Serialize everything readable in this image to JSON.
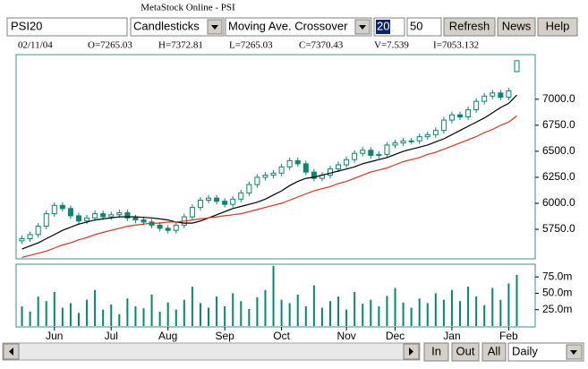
{
  "ui": {
    "window_title": "MetaStock Online - PSI",
    "symbol": "PSI20",
    "chart_style": "Candlesticks",
    "indicator": "Moving Ave. Crossover",
    "period_1": "20",
    "period_2": "50",
    "buttons": [
      "Refresh",
      "News",
      "Help"
    ],
    "nav_buttons": [
      "In",
      "Out",
      "All"
    ],
    "interval": "Daily",
    "info": [
      "02/11/04",
      "O=7265.03",
      "H=7372.81",
      "L=7265.03",
      "C=7370.43",
      "V=7.539",
      "I=7053.132"
    ]
  },
  "chart_data": {
    "type": "candlestick",
    "months": [
      "Jun",
      "Jul",
      "Aug",
      "Sep",
      "Oct",
      "Nov",
      "Dec",
      "Jan",
      "Feb"
    ],
    "month_index": [
      4,
      11,
      18,
      25,
      32,
      40,
      46,
      53,
      60
    ],
    "open": [
      5640,
      5660,
      5700,
      5780,
      5900,
      5980,
      5950,
      5880,
      5830,
      5860,
      5900,
      5870,
      5890,
      5910,
      5860,
      5840,
      5820,
      5790,
      5760,
      5740,
      5790,
      5870,
      5960,
      6030,
      6050,
      6020,
      5990,
      6040,
      6100,
      6180,
      6250,
      6270,
      6290,
      6350,
      6410,
      6380,
      6300,
      6240,
      6270,
      6330,
      6370,
      6420,
      6480,
      6510,
      6460,
      6470,
      6560,
      6580,
      6600,
      6600,
      6640,
      6660,
      6700,
      6800,
      6850,
      6830,
      6900,
      6980,
      7030,
      7060,
      7020,
      7265.03
    ],
    "high": [
      5690,
      5730,
      5810,
      5930,
      6010,
      6010,
      5980,
      5910,
      5890,
      5930,
      5930,
      5920,
      5940,
      5940,
      5890,
      5870,
      5850,
      5820,
      5790,
      5820,
      5900,
      5990,
      6060,
      6080,
      6080,
      6050,
      6070,
      6130,
      6210,
      6280,
      6300,
      6320,
      6380,
      6440,
      6440,
      6410,
      6330,
      6300,
      6360,
      6400,
      6450,
      6510,
      6540,
      6540,
      6500,
      6590,
      6610,
      6630,
      6630,
      6670,
      6690,
      6730,
      6830,
      6880,
      6880,
      6930,
      7010,
      7060,
      7090,
      7090,
      7110,
      7372.81
    ],
    "low": [
      5610,
      5630,
      5670,
      5750,
      5870,
      5920,
      5850,
      5800,
      5800,
      5830,
      5840,
      5840,
      5860,
      5830,
      5810,
      5790,
      5760,
      5730,
      5710,
      5710,
      5760,
      5840,
      5930,
      6000,
      5990,
      5960,
      5960,
      6010,
      6070,
      6150,
      6220,
      6240,
      6260,
      6320,
      6350,
      6270,
      6210,
      6210,
      6240,
      6300,
      6340,
      6390,
      6450,
      6430,
      6430,
      6440,
      6530,
      6550,
      6570,
      6570,
      6610,
      6630,
      6670,
      6770,
      6800,
      6800,
      6870,
      6950,
      7000,
      6990,
      6990,
      7265.03
    ],
    "close": [
      5660,
      5700,
      5780,
      5900,
      5980,
      5950,
      5880,
      5830,
      5860,
      5900,
      5870,
      5890,
      5910,
      5860,
      5840,
      5820,
      5790,
      5760,
      5740,
      5790,
      5870,
      5960,
      6030,
      6050,
      6020,
      5990,
      6040,
      6100,
      6180,
      6250,
      6270,
      6290,
      6350,
      6410,
      6380,
      6300,
      6240,
      6270,
      6330,
      6370,
      6420,
      6480,
      6510,
      6460,
      6470,
      6560,
      6580,
      6600,
      6600,
      6640,
      6660,
      6700,
      6800,
      6850,
      6830,
      6900,
      6980,
      7030,
      7060,
      7020,
      7080,
      7370.43
    ],
    "color": "#008a6e",
    "series": [
      {
        "color": "#000000",
        "values": [
          5560,
          5590,
          5620,
          5660,
          5700,
          5740,
          5770,
          5800,
          5820,
          5840,
          5850,
          5860,
          5870,
          5870,
          5870,
          5865,
          5860,
          5850,
          5840,
          5820,
          5810,
          5810,
          5830,
          5860,
          5890,
          5920,
          5950,
          5970,
          5990,
          6010,
          6040,
          6080,
          6120,
          6170,
          6210,
          6240,
          6250,
          6270,
          6290,
          6310,
          6330,
          6350,
          6380,
          6400,
          6420,
          6440,
          6470,
          6500,
          6520,
          6540,
          6560,
          6590,
          6620,
          6660,
          6700,
          6740,
          6780,
          6820,
          6870,
          6920,
          6960,
          7040
        ]
      },
      {
        "color": "#e0301e",
        "values": [
          5480,
          5500,
          5520,
          5540,
          5570,
          5600,
          5620,
          5650,
          5670,
          5700,
          5720,
          5740,
          5760,
          5780,
          5790,
          5800,
          5810,
          5810,
          5820,
          5820,
          5830,
          5840,
          5850,
          5860,
          5870,
          5880,
          5890,
          5900,
          5920,
          5940,
          5960,
          5980,
          6000,
          6030,
          6060,
          6090,
          6120,
          6140,
          6160,
          6190,
          6210,
          6240,
          6270,
          6300,
          6320,
          6340,
          6370,
          6400,
          6420,
          6440,
          6470,
          6490,
          6520,
          6550,
          6580,
          6610,
          6640,
          6680,
          6710,
          6750,
          6780,
          6840
        ]
      }
    ],
    "ylim": [
      5475,
      7420
    ],
    "yticks": [
      {
        "value": 5750,
        "label": "5750.0"
      },
      {
        "value": 6000,
        "label": "6000.0"
      },
      {
        "value": 6250,
        "label": "6250.0"
      },
      {
        "value": 6500,
        "label": "6500.0"
      },
      {
        "value": 6750,
        "label": "6750.0"
      },
      {
        "value": 7000,
        "label": "7000.0"
      }
    ],
    "volume": {
      "color": "#008a6e",
      "values": [
        30,
        22,
        45,
        38,
        52,
        28,
        35,
        20,
        40,
        55,
        25,
        33,
        18,
        42,
        30,
        27,
        48,
        22,
        36,
        25,
        40,
        60,
        35,
        28,
        45,
        30,
        50,
        38,
        26,
        44,
        55,
        92,
        40,
        35,
        48,
        30,
        62,
        28,
        38,
        45,
        25,
        52,
        34,
        40,
        30,
        46,
        58,
        36,
        28,
        42,
        35,
        50,
        40,
        55,
        38,
        60,
        45,
        32,
        58,
        40,
        65,
        78
      ],
      "ylim": [
        0,
        93
      ],
      "yticks": [
        {
          "value": 25,
          "label": "25.0m"
        },
        {
          "value": 50,
          "label": "50.0m"
        },
        {
          "value": 75,
          "label": "75.0m"
        }
      ]
    }
  }
}
